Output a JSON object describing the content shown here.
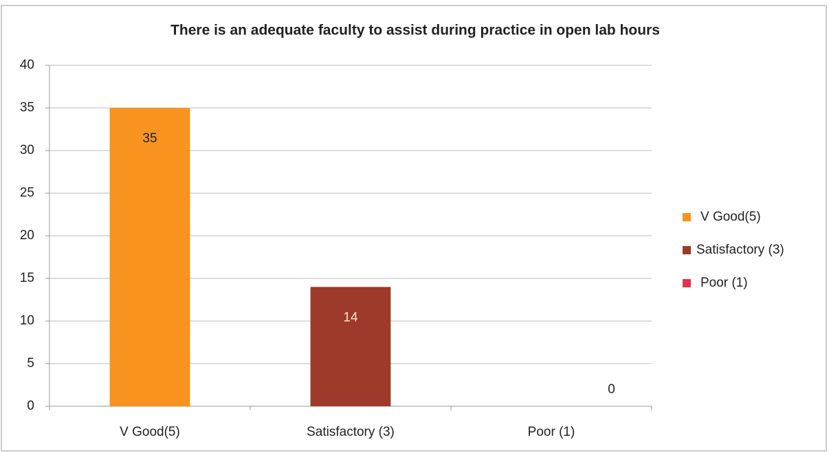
{
  "chart_data": {
    "type": "bar",
    "title": "There is an adequate faculty to assist during practice in open lab hours",
    "categories": [
      "V Good(5)",
      "Satisfactory (3)",
      "Poor (1)"
    ],
    "values": [
      35,
      14,
      0
    ],
    "colors": [
      "#f7931e",
      "#9e3a2a",
      "#e0344a"
    ],
    "ylim": [
      0,
      40
    ],
    "yticks": [
      0,
      5,
      10,
      15,
      20,
      25,
      30,
      35,
      40
    ],
    "grid": true,
    "legend": "right"
  }
}
